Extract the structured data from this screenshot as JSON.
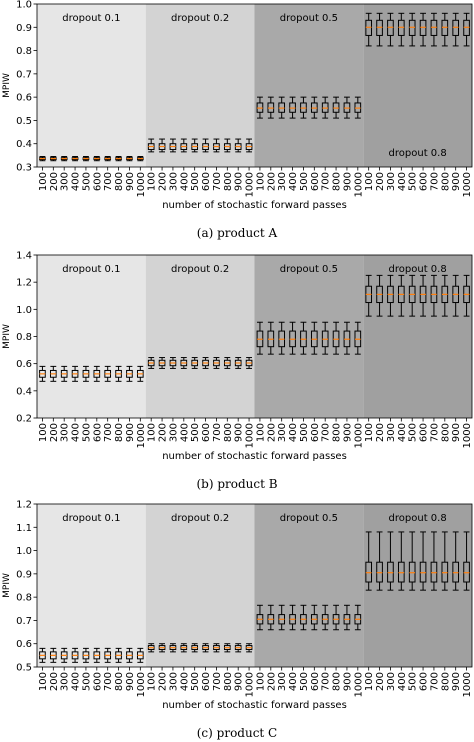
{
  "figure": {
    "captions": [
      "(a) product A",
      "(b) product B",
      "(c) product C"
    ]
  },
  "chart_data": [
    {
      "type": "box",
      "panel": "a",
      "product": "product A",
      "xlabel": "number of stochastic forward passes",
      "ylabel": "MPIW",
      "ylim": [
        0.3,
        1.0
      ],
      "yticks": [
        0.3,
        0.4,
        0.5,
        0.6,
        0.7,
        0.8,
        0.9,
        1.0
      ],
      "yticklabels": [
        "0.3",
        "0.4",
        "0.5",
        "0.6",
        "0.7",
        "0.8",
        "0.9",
        "1.0"
      ],
      "categories": [
        "100",
        "200",
        "300",
        "400",
        "500",
        "600",
        "700",
        "800",
        "900",
        "1000"
      ],
      "group_label_position": [
        "top",
        "top",
        "top",
        "bottom"
      ],
      "groups": [
        {
          "label": "dropout 0.1",
          "shade": "#e6e6e6",
          "box": {
            "whislo": 0.327,
            "q1": 0.332,
            "med": 0.336,
            "q3": 0.34,
            "whishi": 0.345
          }
        },
        {
          "label": "dropout 0.2",
          "shade": "#d3d3d3",
          "box": {
            "whislo": 0.365,
            "q1": 0.375,
            "med": 0.388,
            "q3": 0.4,
            "whishi": 0.42
          }
        },
        {
          "label": "dropout 0.5",
          "shade": "#a9a9a9",
          "box": {
            "whislo": 0.51,
            "q1": 0.535,
            "med": 0.553,
            "q3": 0.575,
            "whishi": 0.6
          }
        },
        {
          "label": "dropout 0.8",
          "shade": "#a0a0a0",
          "box": {
            "whislo": 0.82,
            "q1": 0.865,
            "med": 0.9,
            "q3": 0.93,
            "whishi": 0.96
          }
        }
      ]
    },
    {
      "type": "box",
      "panel": "b",
      "product": "product B",
      "xlabel": "number of stochastic forward passes",
      "ylabel": "MPIW",
      "ylim": [
        0.2,
        1.4
      ],
      "yticks": [
        0.2,
        0.4,
        0.6,
        0.8,
        1.0,
        1.2,
        1.4
      ],
      "yticklabels": [
        "0.2",
        "0.4",
        "0.6",
        "0.8",
        "1.0",
        "1.2",
        "1.4"
      ],
      "categories": [
        "100",
        "200",
        "300",
        "400",
        "500",
        "600",
        "700",
        "800",
        "900",
        "1000"
      ],
      "group_label_position": [
        "top",
        "top",
        "top",
        "top"
      ],
      "groups": [
        {
          "label": "dropout 0.1",
          "shade": "#e6e6e6",
          "box": {
            "whislo": 0.47,
            "q1": 0.5,
            "med": 0.525,
            "q3": 0.55,
            "whishi": 0.58
          }
        },
        {
          "label": "dropout 0.2",
          "shade": "#d3d3d3",
          "box": {
            "whislo": 0.565,
            "q1": 0.585,
            "med": 0.605,
            "q3": 0.625,
            "whishi": 0.645
          }
        },
        {
          "label": "dropout 0.5",
          "shade": "#a9a9a9",
          "box": {
            "whislo": 0.67,
            "q1": 0.725,
            "med": 0.78,
            "q3": 0.84,
            "whishi": 0.905
          }
        },
        {
          "label": "dropout 0.8",
          "shade": "#a0a0a0",
          "box": {
            "whislo": 0.95,
            "q1": 1.05,
            "med": 1.11,
            "q3": 1.17,
            "whishi": 1.25
          }
        }
      ]
    },
    {
      "type": "box",
      "panel": "c",
      "product": "product C",
      "xlabel": "number of stochastic forward passes",
      "ylabel": "MPIW",
      "ylim": [
        0.5,
        1.2
      ],
      "yticks": [
        0.5,
        0.6,
        0.7,
        0.8,
        0.9,
        1.0,
        1.1,
        1.2
      ],
      "yticklabels": [
        "0.5",
        "0.6",
        "0.7",
        "0.8",
        "0.9",
        "1.0",
        "1.1",
        "1.2"
      ],
      "categories": [
        "100",
        "200",
        "300",
        "400",
        "500",
        "600",
        "700",
        "800",
        "900",
        "1000"
      ],
      "group_label_position": [
        "top",
        "top",
        "top",
        "top"
      ],
      "groups": [
        {
          "label": "dropout 0.1",
          "shade": "#e6e6e6",
          "box": {
            "whislo": 0.52,
            "q1": 0.535,
            "med": 0.55,
            "q3": 0.565,
            "whishi": 0.58
          }
        },
        {
          "label": "dropout 0.2",
          "shade": "#d3d3d3",
          "box": {
            "whislo": 0.565,
            "q1": 0.575,
            "med": 0.583,
            "q3": 0.592,
            "whishi": 0.6
          }
        },
        {
          "label": "dropout 0.5",
          "shade": "#a9a9a9",
          "box": {
            "whislo": 0.66,
            "q1": 0.685,
            "med": 0.705,
            "q3": 0.725,
            "whishi": 0.765
          }
        },
        {
          "label": "dropout 0.8",
          "shade": "#a0a0a0",
          "box": {
            "whislo": 0.83,
            "q1": 0.865,
            "med": 0.905,
            "q3": 0.95,
            "whishi": 1.08
          }
        }
      ]
    }
  ],
  "colors": {
    "median": "#ff7f0e",
    "box": "#000000",
    "axes": "#000000"
  }
}
